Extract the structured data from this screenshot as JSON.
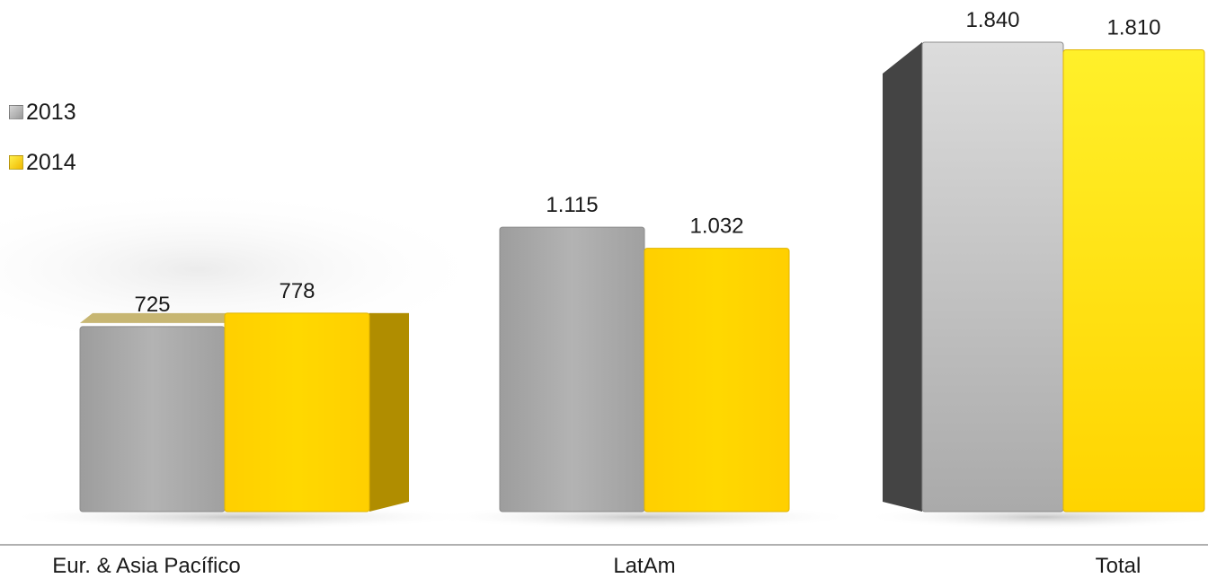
{
  "chart_data": {
    "type": "bar",
    "categories": [
      "Eur. & Asia Pacífico",
      "LatAm",
      "Total"
    ],
    "series": [
      {
        "name": "2013",
        "values": [
          725,
          1115,
          1840
        ],
        "labels": [
          "725",
          "1.115",
          "1.840"
        ]
      },
      {
        "name": "2014",
        "values": [
          778,
          1032,
          1810
        ],
        "labels": [
          "778",
          "1.032",
          "1.810"
        ]
      }
    ],
    "title": "",
    "xlabel": "",
    "ylabel": "",
    "ylim": [
      0,
      1840
    ],
    "grid": false,
    "legend_position": "left"
  },
  "colors": {
    "series_2013": "#a9a9a9",
    "series_2014": "#ffd500",
    "side_2013": "#444444",
    "side_2014": "#b08d00",
    "baseline": "#b0b0b0"
  }
}
